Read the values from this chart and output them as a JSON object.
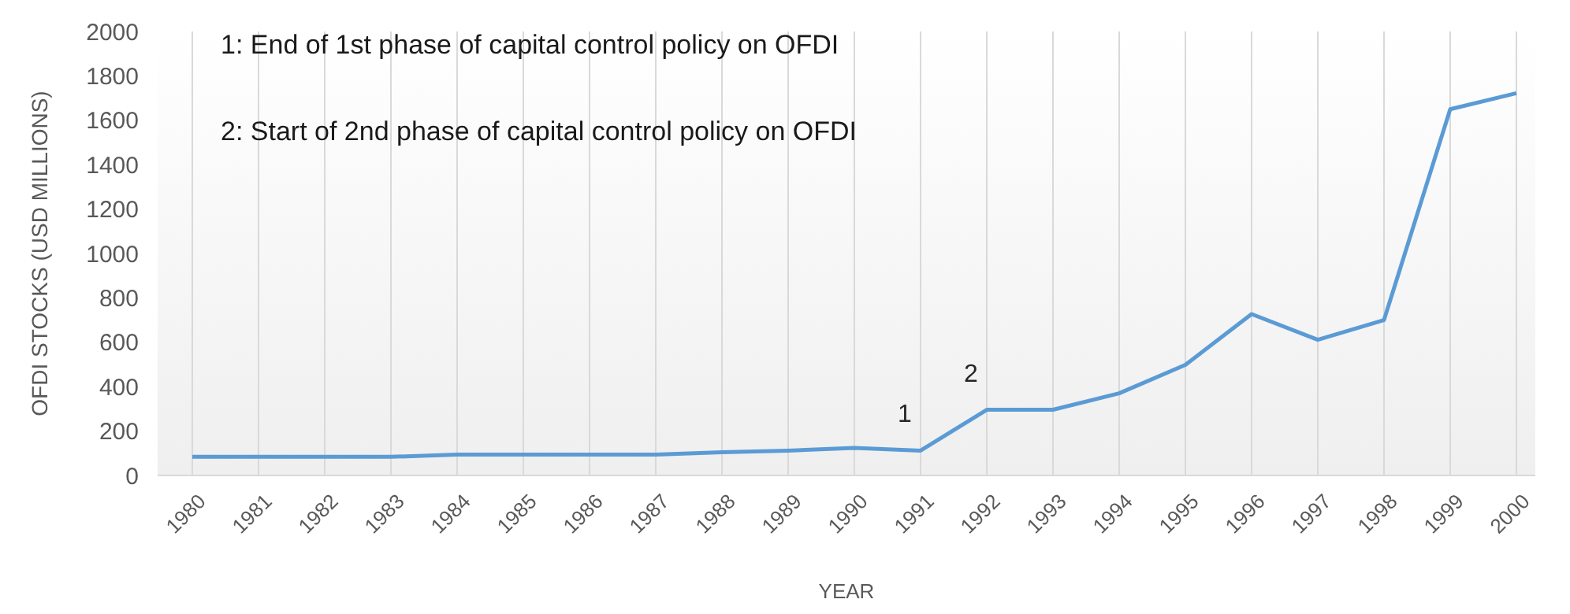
{
  "chart_data": {
    "type": "line",
    "xlabel": "YEAR",
    "ylabel": "OFDI STOCKS (USD MILLIONS)",
    "categories": [
      "1980",
      "1981",
      "1982",
      "1983",
      "1984",
      "1985",
      "1986",
      "1987",
      "1988",
      "1989",
      "1990",
      "1991",
      "1992",
      "1993",
      "1994",
      "1995",
      "1996",
      "1997",
      "1998",
      "1999",
      "2000"
    ],
    "series": [
      {
        "color": "#5b9bd5",
        "values": [
          84,
          84,
          84,
          84,
          94,
          94,
          94,
          94,
          105,
          112,
          124,
          112,
          296,
          296,
          370,
          498,
          727,
          611,
          700,
          1650,
          1722
        ]
      }
    ],
    "ylim": [
      0,
      2000
    ],
    "yticks": [
      0,
      200,
      400,
      600,
      800,
      1000,
      1200,
      1400,
      1600,
      1800,
      2000
    ],
    "grid": "x",
    "marker": "none",
    "line_style": "solid",
    "annotations": [
      "1: End of 1st phase of capital control policy on OFDI",
      "2: Start of 2nd phase of capital control policy on OFDI",
      {
        "text": "1",
        "x": "1991",
        "y": 112
      },
      {
        "text": "2",
        "x": "1992",
        "y": 296
      }
    ]
  }
}
